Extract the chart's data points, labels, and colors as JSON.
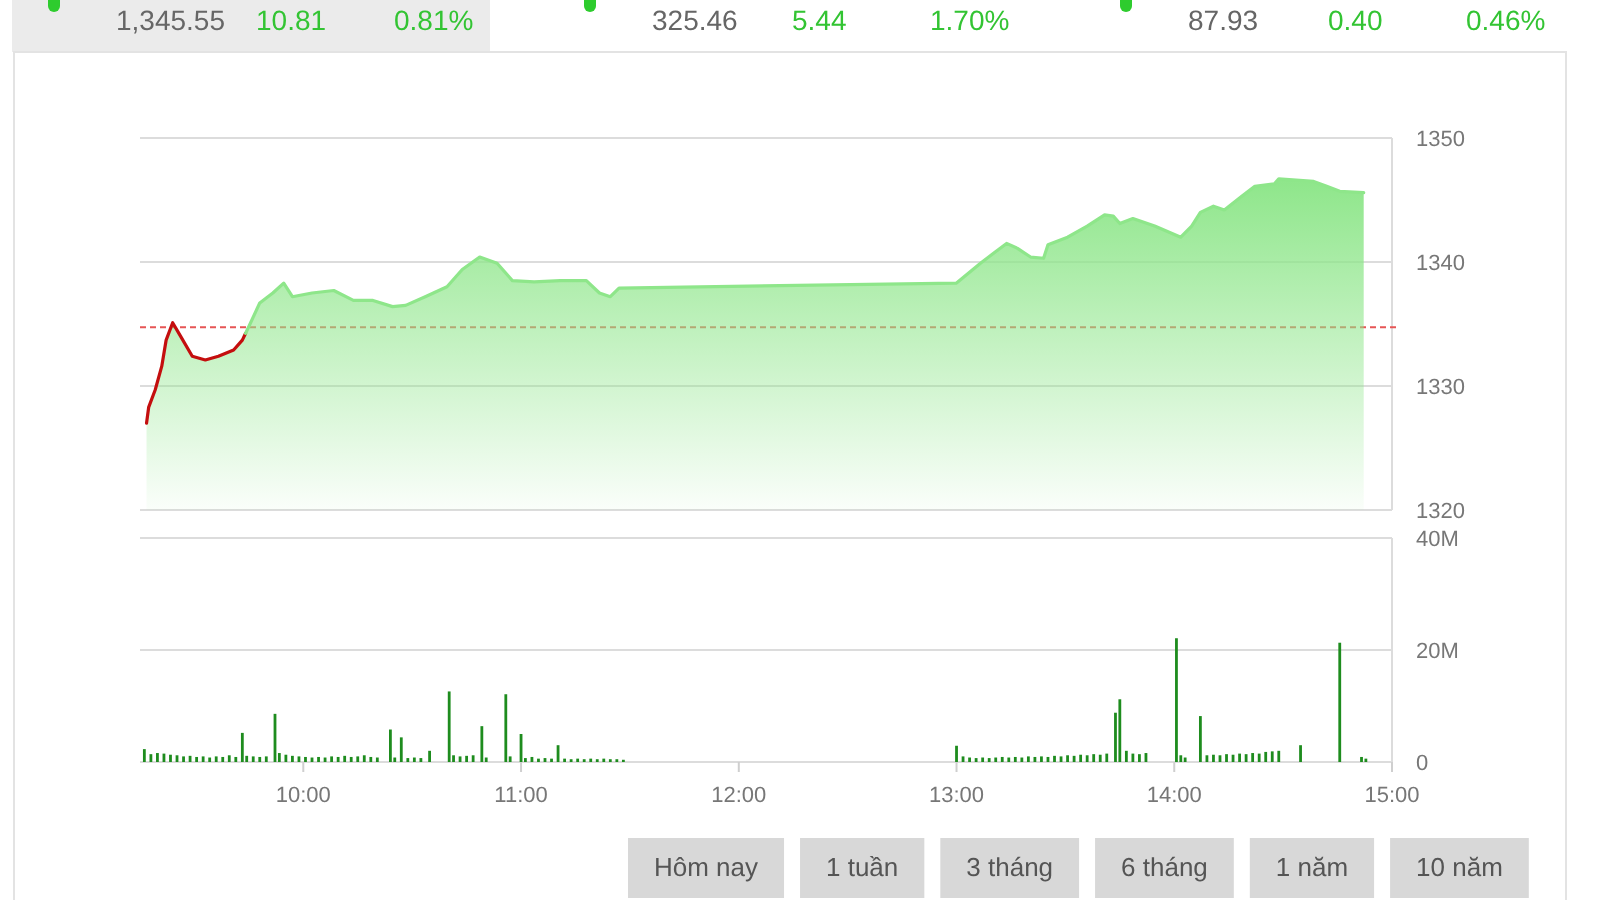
{
  "chart_data": [
    {
      "type": "other",
      "annotations": [
        "1,345.55",
        "10.81",
        "0.81%",
        "325.46",
        "5.44",
        "1.70%",
        "87.93",
        "0.40",
        "0.46%"
      ]
    },
    {
      "type": "area",
      "xlim": [
        9.25,
        15
      ],
      "ylim": [
        1320,
        1350
      ],
      "yticks": [
        1320,
        1330,
        1340,
        1350
      ],
      "grid": "y",
      "tick_labels": "y",
      "ref_lines": [
        {
          "axis": "y",
          "value": 1334.74,
          "color": "#e65555",
          "line_style": "dashed"
        }
      ],
      "series": [
        {
          "type": "area",
          "color": "#8ee68a",
          "x": [
            9.28,
            9.29,
            9.32,
            9.35,
            9.37,
            9.4,
            9.43,
            9.49,
            9.55,
            9.61,
            9.68,
            9.72,
            9.75,
            9.8,
            9.86,
            9.91,
            9.95,
            10.04,
            10.14,
            10.23,
            10.32,
            10.41,
            10.47,
            10.56,
            10.66,
            10.73,
            10.81,
            10.89,
            10.96,
            11.06,
            11.18,
            11.3,
            11.36,
            11.41,
            11.45,
            13.0,
            13.11,
            13.17,
            13.23,
            13.28,
            13.34,
            13.4,
            13.42,
            13.51,
            13.6,
            13.68,
            13.72,
            13.75,
            13.81,
            13.91,
            14.03,
            14.08,
            14.12,
            14.18,
            14.23,
            14.31,
            14.37,
            14.46,
            14.48,
            14.64,
            14.7,
            14.76,
            14.87
          ],
          "values": [
            1327.0,
            1328.3,
            1329.7,
            1331.6,
            1333.7,
            1335.1,
            1334.2,
            1332.4,
            1332.1,
            1332.4,
            1332.9,
            1333.7,
            1334.8,
            1336.7,
            1337.5,
            1338.3,
            1337.2,
            1337.5,
            1337.7,
            1336.9,
            1336.9,
            1336.4,
            1336.5,
            1337.2,
            1338.0,
            1339.4,
            1340.4,
            1339.9,
            1338.5,
            1338.4,
            1338.5,
            1338.5,
            1337.5,
            1337.2,
            1337.9,
            1338.3,
            1339.9,
            1340.7,
            1341.5,
            1341.1,
            1340.4,
            1340.3,
            1341.4,
            1342.0,
            1342.9,
            1343.8,
            1343.7,
            1343.1,
            1343.5,
            1342.9,
            1342.0,
            1342.9,
            1344.0,
            1344.5,
            1344.2,
            1345.3,
            1346.1,
            1346.3,
            1346.7,
            1346.5,
            1346.1,
            1345.7,
            1345.6
          ],
          "colors": [
            "#c40e0e",
            "#c40e0e",
            "#c40e0e",
            "#c40e0e",
            "#c40e0e",
            "#c40e0e",
            "#c40e0e",
            "#c40e0e",
            "#c40e0e",
            "#c40e0e",
            "#c40e0e",
            "#c40e0e",
            "#8ee68a",
            "#8ee68a",
            "#8ee68a",
            "#8ee68a",
            "#8ee68a",
            "#8ee68a",
            "#8ee68a",
            "#8ee68a",
            "#8ee68a",
            "#8ee68a",
            "#8ee68a",
            "#8ee68a",
            "#8ee68a",
            "#8ee68a",
            "#8ee68a",
            "#8ee68a",
            "#8ee68a",
            "#8ee68a",
            "#8ee68a",
            "#8ee68a",
            "#8ee68a",
            "#8ee68a",
            "#8ee68a",
            "#8ee68a",
            "#8ee68a",
            "#8ee68a",
            "#8ee68a",
            "#8ee68a",
            "#8ee68a",
            "#8ee68a",
            "#8ee68a",
            "#8ee68a",
            "#8ee68a",
            "#8ee68a",
            "#8ee68a",
            "#8ee68a",
            "#8ee68a",
            "#8ee68a",
            "#8ee68a",
            "#8ee68a",
            "#8ee68a",
            "#8ee68a",
            "#8ee68a",
            "#8ee68a",
            "#8ee68a",
            "#8ee68a",
            "#8ee68a",
            "#8ee68a",
            "#8ee68a",
            "#8ee68a",
            "#8ee68a"
          ]
        }
      ]
    },
    {
      "type": "bar",
      "xlim": [
        9.25,
        15
      ],
      "xticks": [
        {
          "value": 10,
          "label": "10:00"
        },
        {
          "value": 11,
          "label": "11:00"
        },
        {
          "value": 12,
          "label": "12:00"
        },
        {
          "value": 13,
          "label": "13:00"
        },
        {
          "value": 14,
          "label": "14:00"
        },
        {
          "value": 15,
          "label": "15:00"
        }
      ],
      "ylim": [
        0,
        40
      ],
      "yticks": [
        0,
        {
          "value": 20,
          "label": "20M"
        },
        {
          "value": 40,
          "label": "40M"
        }
      ],
      "grid": "y",
      "series": [
        {
          "color": "#1e8c1e",
          "x": [
            9.27,
            9.3,
            9.33,
            9.36,
            9.39,
            9.42,
            9.45,
            9.48,
            9.51,
            9.54,
            9.57,
            9.6,
            9.63,
            9.66,
            9.69,
            9.72,
            9.74,
            9.77,
            9.8,
            9.83,
            9.87,
            9.89,
            9.92,
            9.95,
            9.98,
            10.01,
            10.04,
            10.07,
            10.1,
            10.13,
            10.16,
            10.19,
            10.22,
            10.25,
            10.28,
            10.31,
            10.34,
            10.4,
            10.42,
            10.45,
            10.48,
            10.51,
            10.54,
            10.58,
            10.67,
            10.69,
            10.72,
            10.75,
            10.78,
            10.82,
            10.84,
            10.93,
            10.95,
            11.0,
            11.02,
            11.05,
            11.08,
            11.11,
            11.14,
            11.17,
            11.2,
            11.23,
            11.26,
            11.29,
            11.32,
            11.35,
            11.38,
            11.41,
            11.44,
            11.47,
            13.0,
            13.03,
            13.06,
            13.09,
            13.12,
            13.15,
            13.18,
            13.21,
            13.24,
            13.27,
            13.3,
            13.33,
            13.36,
            13.39,
            13.42,
            13.45,
            13.48,
            13.51,
            13.54,
            13.57,
            13.6,
            13.63,
            13.66,
            13.69,
            13.73,
            13.75,
            13.78,
            13.81,
            13.84,
            13.87,
            14.01,
            14.03,
            14.05,
            14.12,
            14.15,
            14.18,
            14.21,
            14.24,
            14.27,
            14.3,
            14.33,
            14.36,
            14.39,
            14.42,
            14.45,
            14.48,
            14.58,
            14.76,
            14.86,
            14.88
          ],
          "values": [
            2.3,
            1.4,
            1.6,
            1.5,
            1.3,
            1.2,
            1.0,
            1.1,
            0.9,
            1.0,
            0.8,
            1.0,
            0.9,
            1.2,
            0.9,
            5.2,
            1.1,
            1.0,
            0.9,
            1.0,
            8.6,
            1.6,
            1.3,
            1.1,
            1.0,
            0.9,
            0.8,
            0.9,
            0.8,
            1.0,
            0.9,
            1.1,
            0.9,
            1.0,
            1.2,
            0.9,
            0.8,
            5.8,
            0.8,
            4.4,
            0.7,
            0.8,
            0.7,
            2.0,
            12.6,
            1.2,
            1.0,
            1.1,
            1.2,
            6.4,
            0.8,
            12.1,
            1.0,
            5.0,
            0.7,
            0.9,
            0.6,
            0.7,
            0.6,
            3.0,
            0.6,
            0.5,
            0.6,
            0.5,
            0.6,
            0.5,
            0.6,
            0.5,
            0.5,
            0.4,
            2.9,
            1.0,
            0.8,
            0.7,
            0.8,
            0.7,
            0.8,
            0.9,
            0.8,
            0.9,
            0.8,
            1.0,
            0.9,
            1.0,
            0.9,
            1.1,
            1.0,
            1.2,
            1.1,
            1.3,
            1.2,
            1.4,
            1.3,
            1.5,
            8.8,
            11.2,
            2.0,
            1.5,
            1.4,
            1.6,
            22.1,
            1.2,
            0.8,
            8.2,
            1.2,
            1.3,
            1.2,
            1.4,
            1.3,
            1.5,
            1.4,
            1.6,
            1.5,
            1.8,
            1.9,
            2.0,
            3.0,
            21.3,
            0.9,
            0.6
          ]
        }
      ]
    },
    {
      "type": "other",
      "annotations": [
        "Hôm nay",
        "1 tuần",
        "3 tháng",
        "6 tháng",
        "1 năm",
        "10 năm"
      ]
    }
  ]
}
